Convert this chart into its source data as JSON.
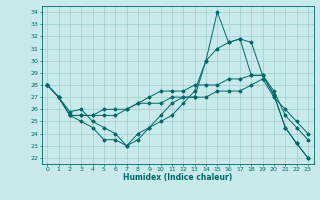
{
  "xlabel": "Humidex (Indice chaleur)",
  "xlim": [
    -0.5,
    23.5
  ],
  "ylim": [
    21.5,
    34.5
  ],
  "yticks": [
    22,
    23,
    24,
    25,
    26,
    27,
    28,
    29,
    30,
    31,
    32,
    33,
    34
  ],
  "xticks": [
    0,
    1,
    2,
    3,
    4,
    5,
    6,
    7,
    8,
    9,
    10,
    11,
    12,
    13,
    14,
    15,
    16,
    17,
    18,
    19,
    20,
    21,
    22,
    23
  ],
  "bg_color": "#c8eaea",
  "line_color": "#006868",
  "grid_color": "#9ecece",
  "lines": [
    [
      28,
      27,
      25.5,
      25,
      24.5,
      23.5,
      23.5,
      23,
      23.5,
      24.5,
      25,
      25.5,
      26.5,
      27.5,
      30,
      34,
      31.5,
      31.8,
      28.8,
      28.8,
      27.2,
      24.5,
      23.2,
      22
    ],
    [
      28,
      27,
      25.5,
      25.5,
      25.5,
      26,
      26,
      26,
      26.5,
      26.5,
      26.5,
      27,
      27,
      27,
      27,
      27.5,
      27.5,
      27.5,
      28,
      28.5,
      27,
      26,
      25,
      24
    ],
    [
      28,
      27,
      25.5,
      25.5,
      25.5,
      25.5,
      25.5,
      26,
      26.5,
      27,
      27.5,
      27.5,
      27.5,
      28,
      28,
      28,
      28.5,
      28.5,
      28.8,
      28.8,
      27.5,
      25.5,
      24.5,
      23.5
    ],
    [
      28,
      27,
      25.8,
      26,
      25,
      24.5,
      24,
      23,
      24,
      24.5,
      25.5,
      26.5,
      27,
      27,
      30,
      31,
      31.5,
      31.8,
      31.5,
      28.8,
      27.2,
      24.5,
      23.2,
      22
    ]
  ]
}
